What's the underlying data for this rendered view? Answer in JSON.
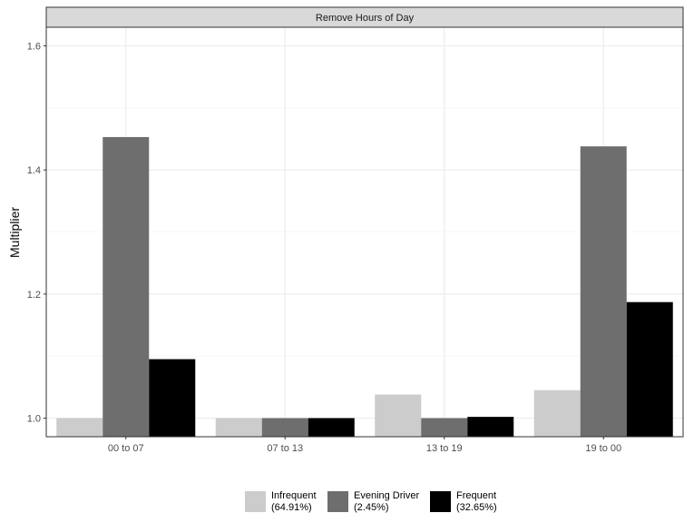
{
  "chart_data": {
    "type": "bar",
    "facet_title": "Remove Hours of Day",
    "ylabel": "Multiplier",
    "xlabel": "",
    "categories": [
      "00 to 07",
      "07 to 13",
      "13 to 19",
      "19 to 00"
    ],
    "ylim": [
      0.97,
      1.63
    ],
    "yticks": [
      1.0,
      1.2,
      1.4,
      1.6
    ],
    "ytick_labels": [
      "1.0",
      "1.2",
      "1.4",
      "1.6"
    ],
    "baseline": 0.97,
    "grid": true,
    "legend_position": "bottom",
    "series": [
      {
        "name": "Infrequent\n(64.91%)",
        "line1": "Infrequent",
        "line2": "(64.91%)",
        "color": "#cccccc",
        "values": [
          1.0,
          1.0,
          1.038,
          1.045
        ]
      },
      {
        "name": "Evening Driver\n(2.45%)",
        "line1": "Evening Driver",
        "line2": "(2.45%)",
        "color": "#6e6e6e",
        "values": [
          1.453,
          1.0,
          1.0,
          1.438
        ]
      },
      {
        "name": "Frequent\n(32.65%)",
        "line1": "Frequent",
        "line2": "(32.65%)",
        "color": "#000000",
        "values": [
          1.095,
          1.0,
          1.002,
          1.187
        ]
      }
    ]
  }
}
